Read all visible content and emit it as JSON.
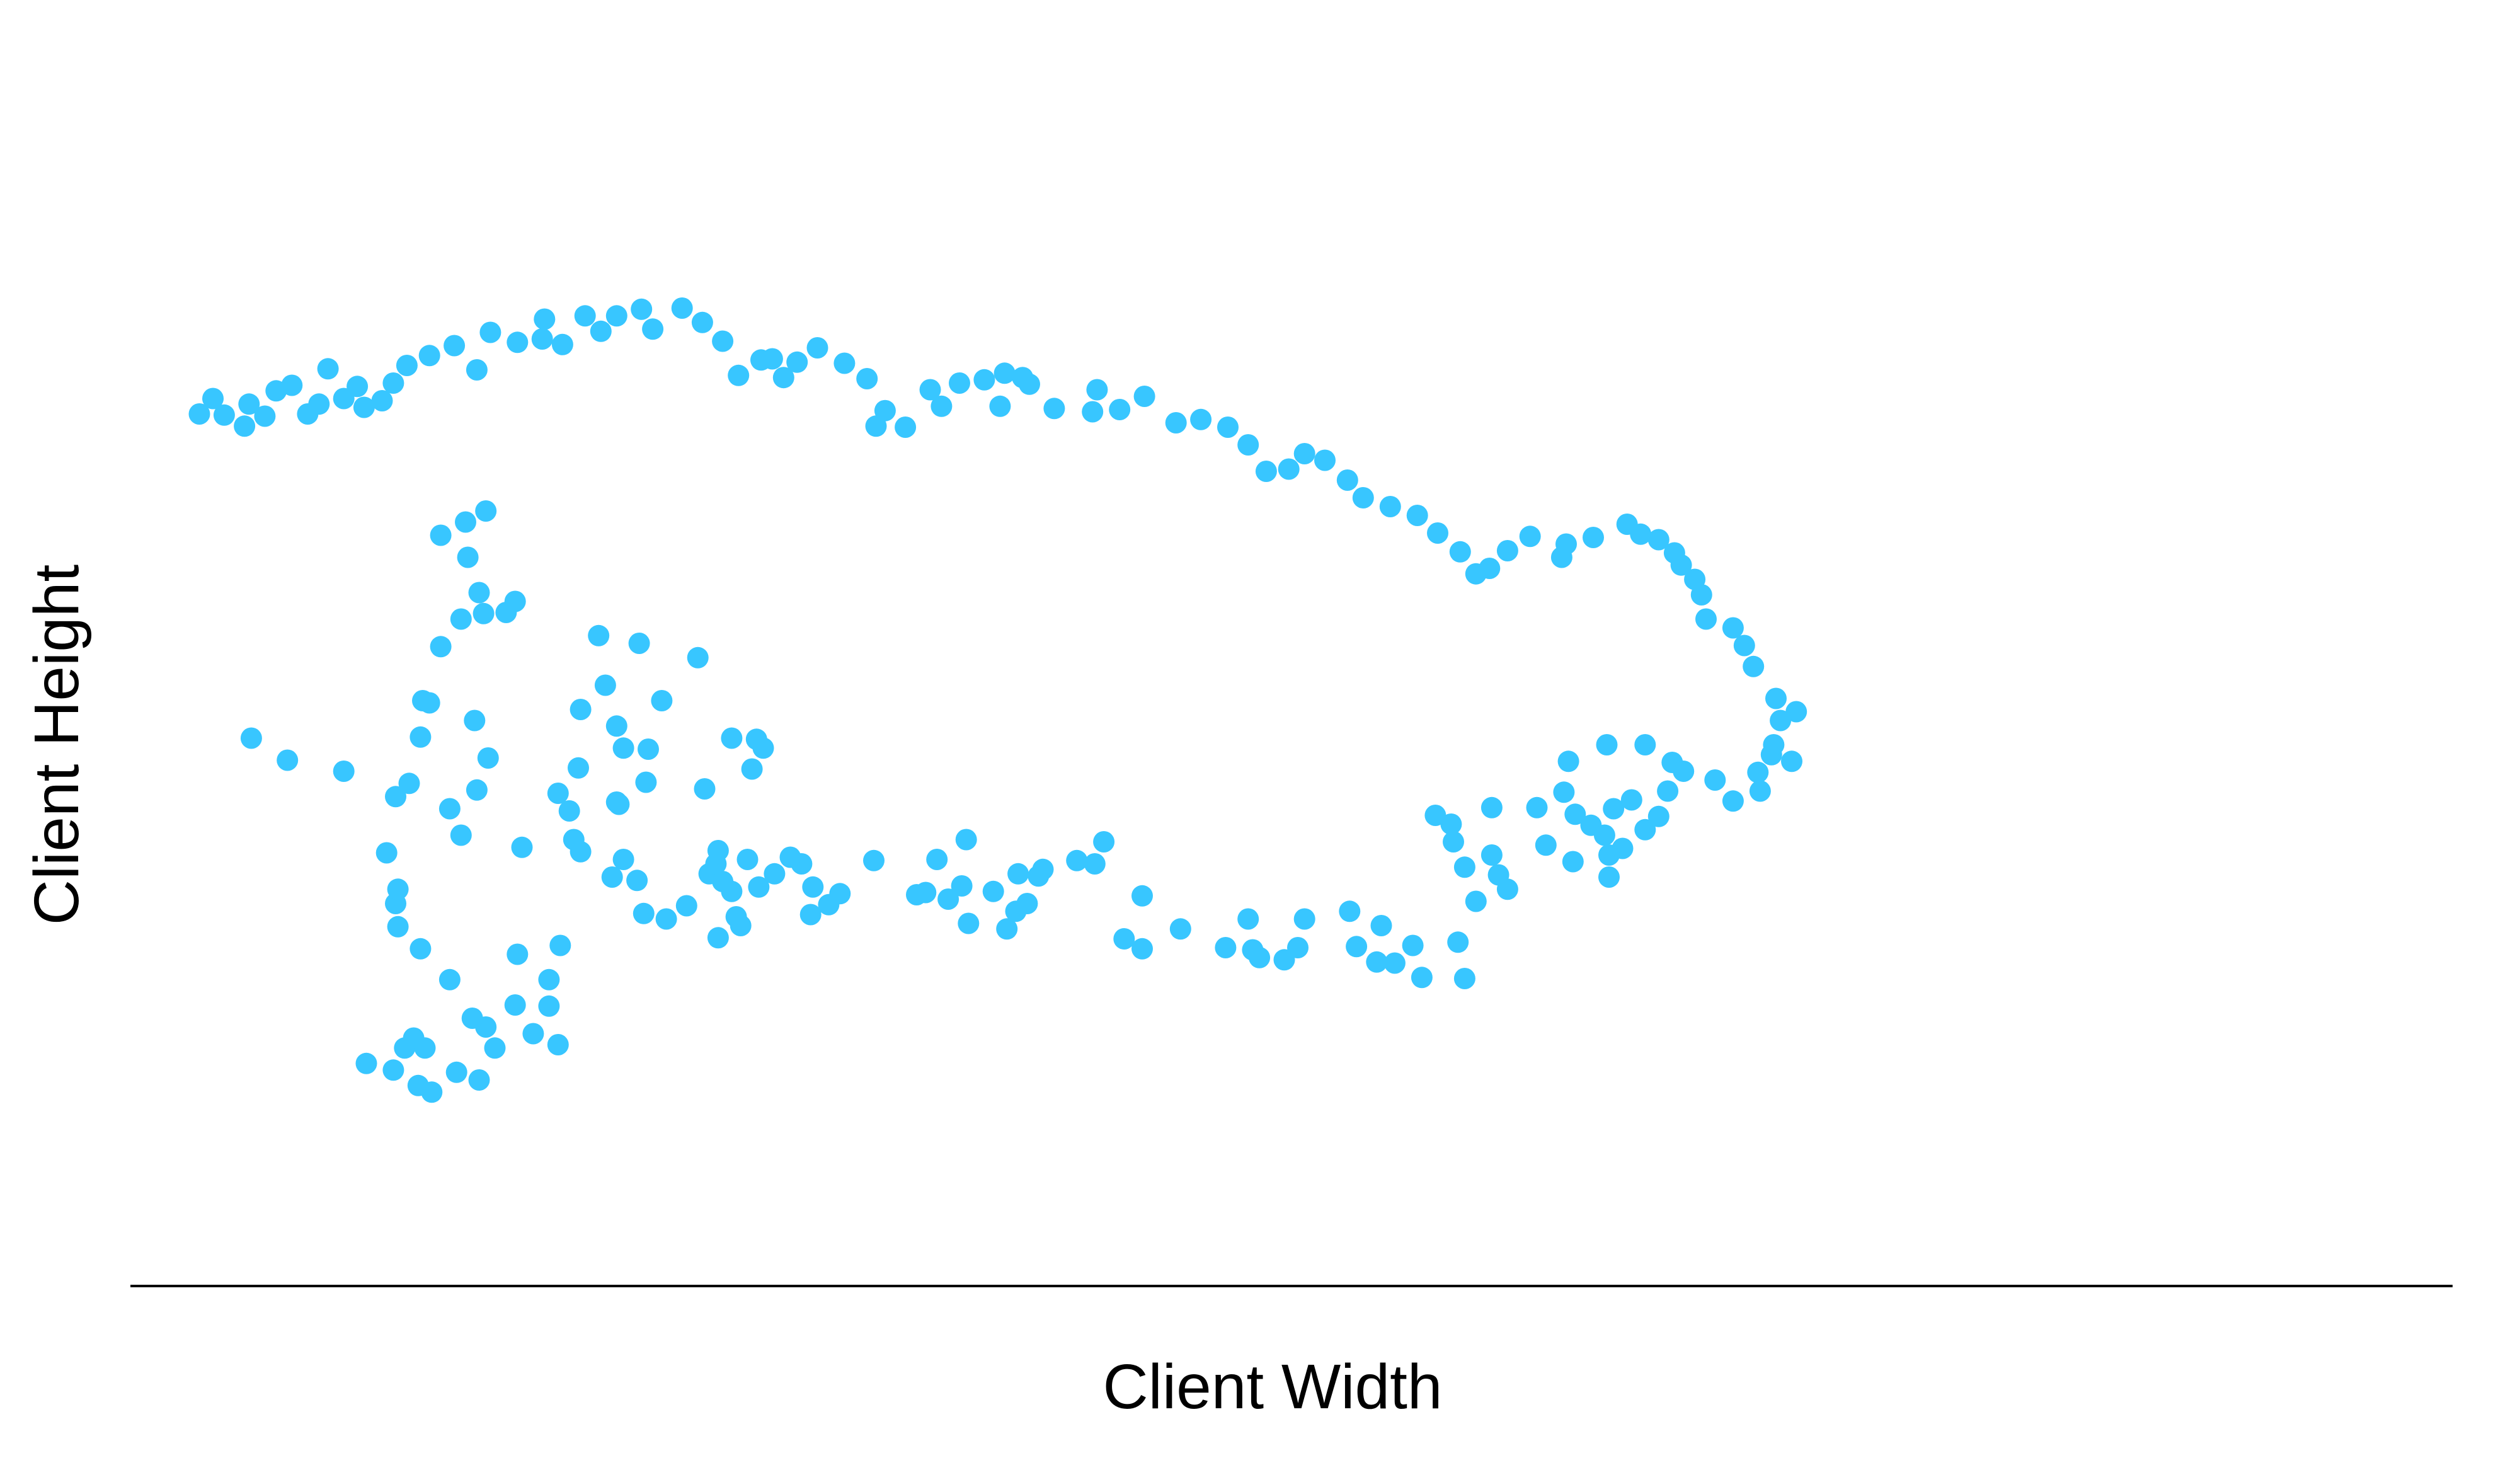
{
  "colors": {
    "background": "#ffffff",
    "points": "#38c6ff",
    "axis_line": "#000000",
    "text": "#000000"
  },
  "chart_data": {
    "type": "scatter",
    "title": "",
    "xlabel": "Client Width",
    "ylabel": "Client Height",
    "xlim": [
      0,
      100
    ],
    "ylim": [
      0,
      100
    ],
    "grid": false,
    "legend": "none",
    "series": [
      {
        "points": [
          [
            3.6,
            42.2
          ],
          [
            5.2,
            40.2
          ],
          [
            7.7,
            39.2
          ],
          [
            10.4,
            14.1
          ],
          [
            10.8,
            15.0
          ],
          [
            11.3,
            14.1
          ],
          [
            9.9,
            12.1
          ],
          [
            8.7,
            12.7
          ],
          [
            11.6,
            10.1
          ],
          [
            11.0,
            10.7
          ],
          [
            12.7,
            11.9
          ],
          [
            13.7,
            11.2
          ],
          [
            14.4,
            14.1
          ],
          [
            14.0,
            16.0
          ],
          [
            16.1,
            15.4
          ],
          [
            17.2,
            14.4
          ],
          [
            16.8,
            17.9
          ],
          [
            16.8,
            20.3
          ],
          [
            15.4,
            22.6
          ],
          [
            17.3,
            23.4
          ],
          [
            13.4,
            16.8
          ],
          [
            15.3,
            18.0
          ],
          [
            12.4,
            20.3
          ],
          [
            11.1,
            23.1
          ],
          [
            10.1,
            25.1
          ],
          [
            10.0,
            27.2
          ],
          [
            10.1,
            28.5
          ],
          [
            9.6,
            31.8
          ],
          [
            10.0,
            36.9
          ],
          [
            10.6,
            38.1
          ],
          [
            11.1,
            42.3
          ],
          [
            11.5,
            45.4
          ],
          [
            12.4,
            35.8
          ],
          [
            12.9,
            33.4
          ],
          [
            13.6,
            37.5
          ],
          [
            14.1,
            40.4
          ],
          [
            13.5,
            43.8
          ],
          [
            12.0,
            50.5
          ],
          [
            12.9,
            53.0
          ],
          [
            13.2,
            58.6
          ],
          [
            13.1,
            61.8
          ],
          [
            12.0,
            60.6
          ],
          [
            14.0,
            62.8
          ],
          [
            15.3,
            54.6
          ],
          [
            13.9,
            53.5
          ],
          [
            13.7,
            55.4
          ],
          [
            14.9,
            53.6
          ],
          [
            17.2,
            37.2
          ],
          [
            19.8,
            36.4
          ],
          [
            18.2,
            31.9
          ],
          [
            19.6,
            29.6
          ],
          [
            20.1,
            31.2
          ],
          [
            20.7,
            29.3
          ],
          [
            21.0,
            26.3
          ],
          [
            22.0,
            25.8
          ],
          [
            22.9,
            27.0
          ],
          [
            23.9,
            29.9
          ],
          [
            24.2,
            30.8
          ],
          [
            24.9,
            28.3
          ],
          [
            25.1,
            26.0
          ],
          [
            25.3,
            25.2
          ],
          [
            24.3,
            24.1
          ],
          [
            24.5,
            29.2
          ],
          [
            25.6,
            31.2
          ],
          [
            26.1,
            28.7
          ],
          [
            24.3,
            32.0
          ],
          [
            23.7,
            37.6
          ],
          [
            26.0,
            42.1
          ],
          [
            26.3,
            41.3
          ],
          [
            25.8,
            39.4
          ],
          [
            24.9,
            42.2
          ],
          [
            18.2,
            44.8
          ],
          [
            19.3,
            47.0
          ],
          [
            19.8,
            43.3
          ],
          [
            20.1,
            41.3
          ],
          [
            23.4,
            49.5
          ],
          [
            19.0,
            51.5
          ],
          [
            20.8,
            50.8
          ],
          [
            21.2,
            41.2
          ],
          [
            21.8,
            45.6
          ],
          [
            21.1,
            38.2
          ],
          [
            19.9,
            36.2
          ],
          [
            17.9,
            33.0
          ],
          [
            17.7,
            35.6
          ],
          [
            18.1,
            39.5
          ],
          [
            15.6,
            32.3
          ],
          [
            11.2,
            45.6
          ],
          [
            26.8,
            29.9
          ],
          [
            28.0,
            30.8
          ],
          [
            28.5,
            28.7
          ],
          [
            29.2,
            27.1
          ],
          [
            29.7,
            28.1
          ],
          [
            28.4,
            26.2
          ],
          [
            27.5,
            31.4
          ],
          [
            31.2,
            31.1
          ],
          [
            33.5,
            28.2
          ],
          [
            33.1,
            28.0
          ],
          [
            34.5,
            27.6
          ],
          [
            35.4,
            25.4
          ],
          [
            35.1,
            28.8
          ],
          [
            34.0,
            31.2
          ],
          [
            35.3,
            33.0
          ],
          [
            36.5,
            28.3
          ],
          [
            37.6,
            29.9
          ],
          [
            38.5,
            29.7
          ],
          [
            38.0,
            27.2
          ],
          [
            37.1,
            24.9
          ],
          [
            37.5,
            26.5
          ],
          [
            38.7,
            30.3
          ],
          [
            40.2,
            31.1
          ],
          [
            41.0,
            30.8
          ],
          [
            41.4,
            32.8
          ],
          [
            43.1,
            27.9
          ],
          [
            42.3,
            24.0
          ],
          [
            43.1,
            23.1
          ],
          [
            44.8,
            24.9
          ],
          [
            46.8,
            23.2
          ],
          [
            47.8,
            25.8
          ],
          [
            48.0,
            23.0
          ],
          [
            48.3,
            22.3
          ],
          [
            49.4,
            22.1
          ],
          [
            50.0,
            23.2
          ],
          [
            50.3,
            25.8
          ],
          [
            52.3,
            26.5
          ],
          [
            52.6,
            23.3
          ],
          [
            53.7,
            25.2
          ],
          [
            55.1,
            23.4
          ],
          [
            53.5,
            21.9
          ],
          [
            54.3,
            21.8
          ],
          [
            55.5,
            20.5
          ],
          [
            57.4,
            20.4
          ],
          [
            57.1,
            23.7
          ],
          [
            57.9,
            27.4
          ],
          [
            59.3,
            28.5
          ],
          [
            58.9,
            29.8
          ],
          [
            58.6,
            31.6
          ],
          [
            57.4,
            30.5
          ],
          [
            56.9,
            32.8
          ],
          [
            56.8,
            34.4
          ],
          [
            56.1,
            35.2
          ],
          [
            58.6,
            35.9
          ],
          [
            60.6,
            35.9
          ],
          [
            62.3,
            35.3
          ],
          [
            63.0,
            34.3
          ],
          [
            63.6,
            33.4
          ],
          [
            64.0,
            35.8
          ],
          [
            64.8,
            36.6
          ],
          [
            66.4,
            37.4
          ],
          [
            66.0,
            35.1
          ],
          [
            65.4,
            33.9
          ],
          [
            64.4,
            32.2
          ],
          [
            63.8,
            31.6
          ],
          [
            63.8,
            29.6
          ],
          [
            62.2,
            31.0
          ],
          [
            61.0,
            32.5
          ],
          [
            61.8,
            37.3
          ],
          [
            62.0,
            40.1
          ],
          [
            63.7,
            41.6
          ],
          [
            65.4,
            41.6
          ],
          [
            66.6,
            40.0
          ],
          [
            67.1,
            39.2
          ],
          [
            68.5,
            38.4
          ],
          [
            69.3,
            36.5
          ],
          [
            70.5,
            37.4
          ],
          [
            70.4,
            39.1
          ],
          [
            71.0,
            40.7
          ],
          [
            71.1,
            41.6
          ],
          [
            71.9,
            40.1
          ],
          [
            71.4,
            43.8
          ],
          [
            72.1,
            44.6
          ],
          [
            71.2,
            45.8
          ],
          [
            70.2,
            48.7
          ],
          [
            69.8,
            50.6
          ],
          [
            69.3,
            52.2
          ],
          [
            68.1,
            53.0
          ],
          [
            67.9,
            55.2
          ],
          [
            67.6,
            56.6
          ],
          [
            67.0,
            57.9
          ],
          [
            66.7,
            59.0
          ],
          [
            66.0,
            60.2
          ],
          [
            65.2,
            60.7
          ],
          [
            64.6,
            61.6
          ],
          [
            63.1,
            60.4
          ],
          [
            61.9,
            59.8
          ],
          [
            61.7,
            58.6
          ],
          [
            60.3,
            60.5
          ],
          [
            59.3,
            59.2
          ],
          [
            58.5,
            57.6
          ],
          [
            57.9,
            57.1
          ],
          [
            57.2,
            59.1
          ],
          [
            56.2,
            60.8
          ],
          [
            55.3,
            62.4
          ],
          [
            54.1,
            63.2
          ],
          [
            52.9,
            64.0
          ],
          [
            52.2,
            65.6
          ],
          [
            51.2,
            67.4
          ],
          [
            50.3,
            68.0
          ],
          [
            49.6,
            66.6
          ],
          [
            48.6,
            66.4
          ],
          [
            47.8,
            68.8
          ],
          [
            46.9,
            70.4
          ],
          [
            45.7,
            71.1
          ],
          [
            44.6,
            70.8
          ],
          [
            43.2,
            73.2
          ],
          [
            42.1,
            72.0
          ],
          [
            41.1,
            73.8
          ],
          [
            40.9,
            71.8
          ],
          [
            39.2,
            72.1
          ],
          [
            38.1,
            74.3
          ],
          [
            37.8,
            74.9
          ],
          [
            37.0,
            75.3
          ],
          [
            36.8,
            72.3
          ],
          [
            36.1,
            74.7
          ],
          [
            35.0,
            74.4
          ],
          [
            34.2,
            72.3
          ],
          [
            33.7,
            73.8
          ],
          [
            32.6,
            70.4
          ],
          [
            31.7,
            71.9
          ],
          [
            31.3,
            70.5
          ],
          [
            30.9,
            74.8
          ],
          [
            29.9,
            76.2
          ],
          [
            28.7,
            77.6
          ],
          [
            27.8,
            76.3
          ],
          [
            27.2,
            74.9
          ],
          [
            26.7,
            76.6
          ],
          [
            26.2,
            76.5
          ],
          [
            25.2,
            75.1
          ],
          [
            24.5,
            78.2
          ],
          [
            23.6,
            79.9
          ],
          [
            22.7,
            81.2
          ],
          [
            21.4,
            79.3
          ],
          [
            20.9,
            81.1
          ],
          [
            19.8,
            80.5
          ],
          [
            19.1,
            79.1
          ],
          [
            18.4,
            80.5
          ],
          [
            17.4,
            77.9
          ],
          [
            16.6,
            80.2
          ],
          [
            16.5,
            78.4
          ],
          [
            15.4,
            78.1
          ],
          [
            14.2,
            79.0
          ],
          [
            13.6,
            75.6
          ],
          [
            12.6,
            77.8
          ],
          [
            11.5,
            76.9
          ],
          [
            10.5,
            76.0
          ],
          [
            9.9,
            74.4
          ],
          [
            9.4,
            72.8
          ],
          [
            8.6,
            72.2
          ],
          [
            8.3,
            74.1
          ],
          [
            7.7,
            73.0
          ],
          [
            7.0,
            75.7
          ],
          [
            6.6,
            72.5
          ],
          [
            6.1,
            71.6
          ],
          [
            5.4,
            74.2
          ],
          [
            4.7,
            73.7
          ],
          [
            4.2,
            71.4
          ],
          [
            3.5,
            72.5
          ],
          [
            3.3,
            70.5
          ],
          [
            2.4,
            71.5
          ],
          [
            1.9,
            73.0
          ],
          [
            1.3,
            71.6
          ]
        ]
      }
    ]
  }
}
